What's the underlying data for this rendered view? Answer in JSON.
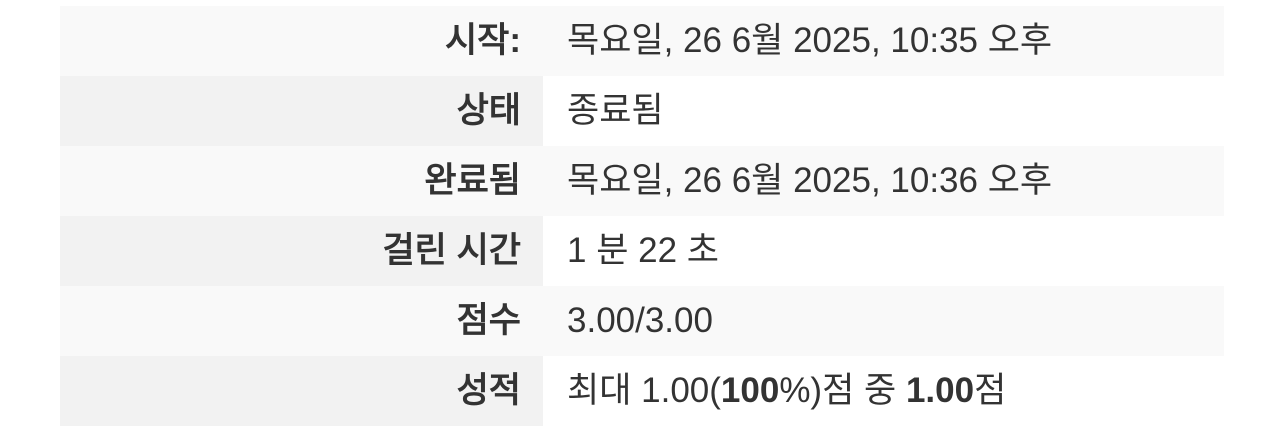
{
  "summary": {
    "started": {
      "label": "시작:",
      "value": "목요일, 26 6월 2025, 10:35 오후"
    },
    "state": {
      "label": "상태",
      "value": "종료됨"
    },
    "completed": {
      "label": "완료됨",
      "value": "목요일, 26 6월 2025, 10:36 오후"
    },
    "time_taken": {
      "label": "걸린 시간",
      "value": "1 분 22 초"
    },
    "marks": {
      "label": "점수",
      "value": "3.00/3.00"
    },
    "grade": {
      "label": "성적",
      "prefix": "최대 1.00(",
      "percent": "100",
      "percent_suffix": "%)점 중 ",
      "score": "1.00",
      "suffix": "점"
    }
  }
}
